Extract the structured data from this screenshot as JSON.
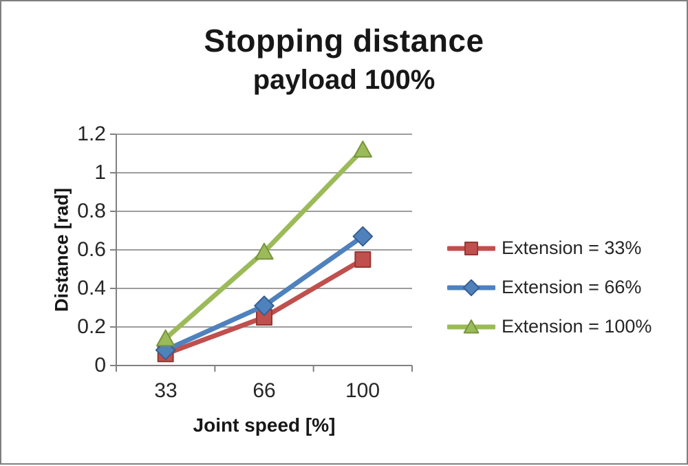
{
  "chart_data": {
    "type": "line",
    "title": "Stopping distance",
    "subtitle": "payload 100%",
    "xlabel": "Joint speed [%]",
    "ylabel": "Distance [rad]",
    "categories": [
      "33",
      "66",
      "100"
    ],
    "series": [
      {
        "name": "Extension = 33%",
        "marker": "square",
        "color": "#C0504D",
        "edge": "#943634",
        "values": [
          0.06,
          0.25,
          0.55
        ]
      },
      {
        "name": "Extension = 66%",
        "marker": "diamond",
        "color": "#4F81BD",
        "edge": "#375E91",
        "values": [
          0.08,
          0.31,
          0.67
        ]
      },
      {
        "name": "Extension = 100%",
        "marker": "triangle",
        "color": "#9BBB59",
        "edge": "#77933C",
        "values": [
          0.14,
          0.59,
          1.12
        ]
      }
    ],
    "ylim": [
      0,
      1.2
    ],
    "ytick_step": 0.2,
    "ytick_labels": [
      "0",
      "0.2",
      "0.4",
      "0.6",
      "0.8",
      "1",
      "1.2"
    ],
    "grid": true,
    "legend_position": "right",
    "colors": {
      "gridline": "#9d9d9d",
      "axis": "#808080",
      "text": "#262626",
      "frame_border": "#7f7f7f",
      "background": "#ffffff"
    }
  }
}
